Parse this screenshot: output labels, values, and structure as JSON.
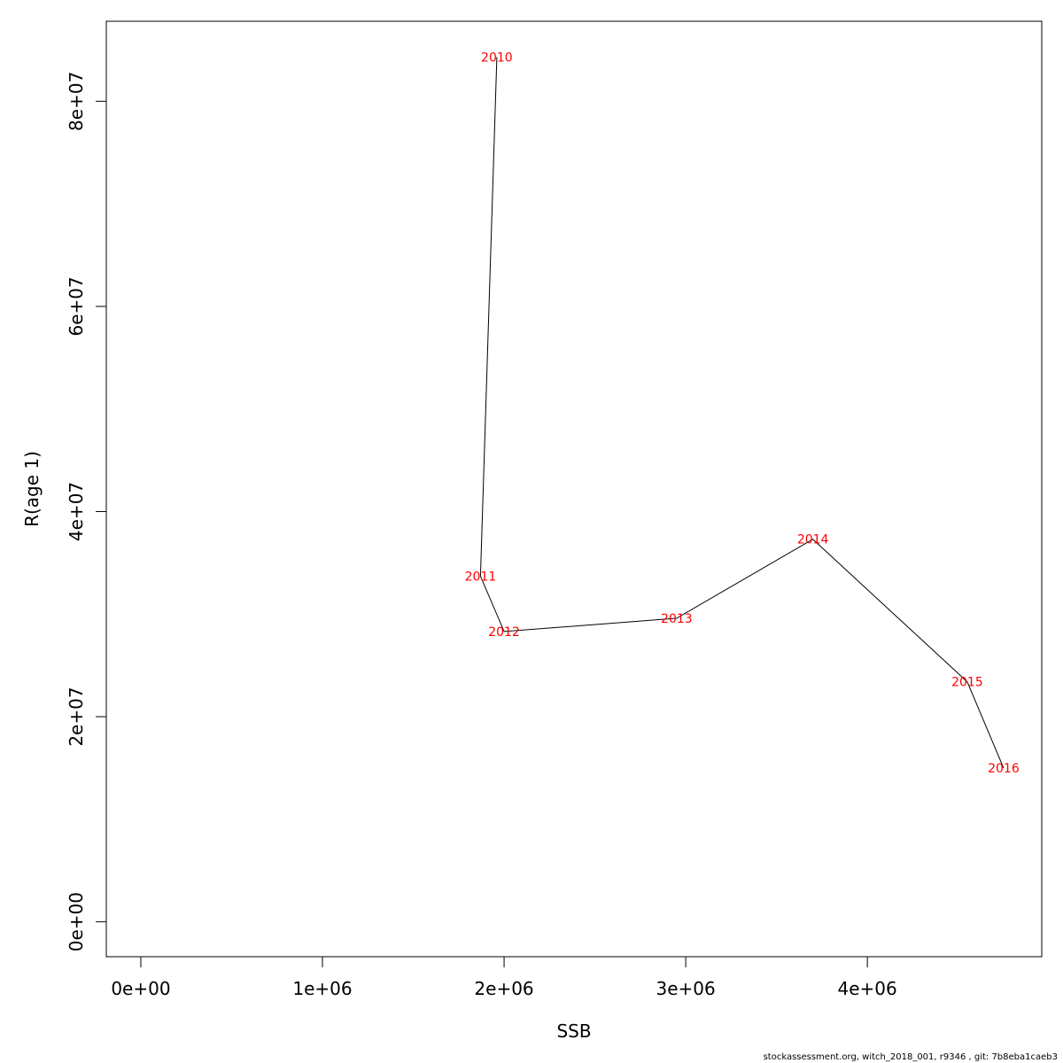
{
  "chart_data": {
    "type": "line",
    "xlabel": "SSB",
    "ylabel": "R(age 1)",
    "xlim": [
      -190000,
      4960000
    ],
    "ylim": [
      -3400000,
      87800000
    ],
    "xticks": [
      {
        "value": 0,
        "label": "0e+00"
      },
      {
        "value": 1000000,
        "label": "1e+06"
      },
      {
        "value": 2000000,
        "label": "2e+06"
      },
      {
        "value": 3000000,
        "label": "3e+06"
      },
      {
        "value": 4000000,
        "label": "4e+06"
      }
    ],
    "yticks": [
      {
        "value": 0,
        "label": "0e+00"
      },
      {
        "value": 20000000,
        "label": "2e+07"
      },
      {
        "value": 40000000,
        "label": "4e+07"
      },
      {
        "value": 60000000,
        "label": "6e+07"
      },
      {
        "value": 80000000,
        "label": "8e+07"
      }
    ],
    "points": [
      {
        "label": "2010",
        "x": 1960000,
        "y": 84300000
      },
      {
        "label": "2011",
        "x": 1870000,
        "y": 33700000
      },
      {
        "label": "2012",
        "x": 2000000,
        "y": 28300000
      },
      {
        "label": "2013",
        "x": 2950000,
        "y": 29600000
      },
      {
        "label": "2014",
        "x": 3700000,
        "y": 37300000
      },
      {
        "label": "2015",
        "x": 4550000,
        "y": 23400000
      },
      {
        "label": "2016",
        "x": 4750000,
        "y": 15000000
      }
    ],
    "line_color": "#000000",
    "label_color": "#ff0000",
    "grid": false,
    "legend": "none"
  },
  "footer": {
    "text": "stockassessment.org, witch_2018_001, r9346 , git: 7b8eba1caeb3"
  }
}
